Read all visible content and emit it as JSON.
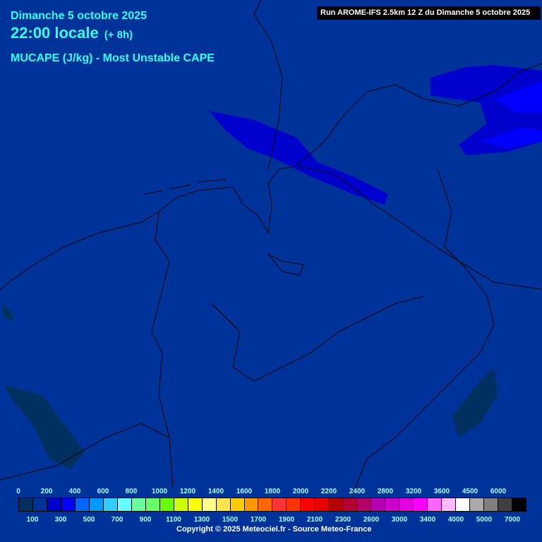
{
  "header": {
    "date": "Dimanche 5 octobre 2025",
    "time": "22:00 locale",
    "offset": "(+ 8h)",
    "parameter": "MUCAPE (J/kg) - Most Unstable CAPE",
    "run": "Run AROME-IFS 2.5km 12 Z du Dimanche 5 octobre 2025"
  },
  "legend": {
    "top_labels": [
      "0",
      "200",
      "400",
      "600",
      "800",
      "1000",
      "1200",
      "1400",
      "1600",
      "1800",
      "2000",
      "2200",
      "2400",
      "2800",
      "3200",
      "3600",
      "4500",
      "6000"
    ],
    "bottom_labels": [
      "100",
      "300",
      "500",
      "700",
      "900",
      "1100",
      "1300",
      "1500",
      "1700",
      "1900",
      "2100",
      "2300",
      "2600",
      "3000",
      "3400",
      "4000",
      "5000",
      "7000"
    ],
    "colors": [
      "#003060",
      "#003399",
      "#0000cc",
      "#0000ff",
      "#0066ff",
      "#0099ff",
      "#33ccff",
      "#66ffff",
      "#66ff99",
      "#66ff66",
      "#66ff00",
      "#ccff00",
      "#ffff00",
      "#ffff88",
      "#ffe44c",
      "#ffcc00",
      "#ff9900",
      "#ff6600",
      "#ff3333",
      "#ff3300",
      "#ff0000",
      "#e60000",
      "#b30000",
      "#b30033",
      "#b30066",
      "#b300b3",
      "#cc00cc",
      "#e000e0",
      "#ff00ff",
      "#ff66ff",
      "#ffbbff",
      "#ffffff",
      "#aaaaaa",
      "#808080",
      "#404040",
      "#000000"
    ]
  },
  "copyright": "Copyright © 2025 Meteociel.fr - Source Meteo-France"
}
